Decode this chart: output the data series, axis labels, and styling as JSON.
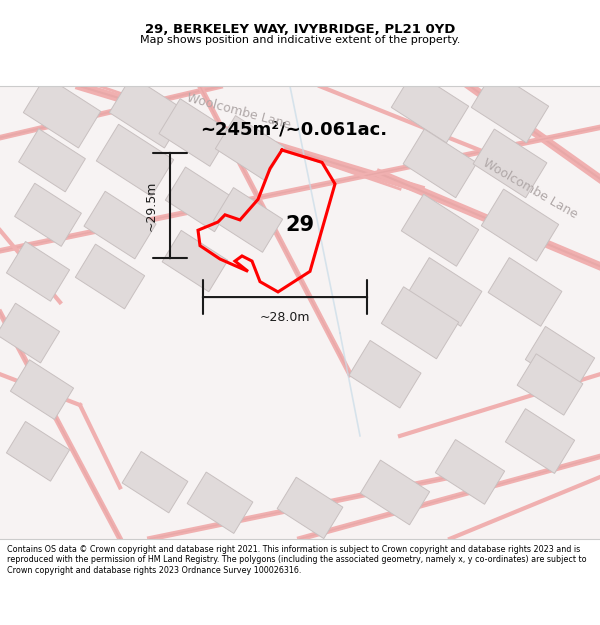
{
  "title_line1": "29, BERKELEY WAY, IVYBRIDGE, PL21 0YD",
  "title_line2": "Map shows position and indicative extent of the property.",
  "area_text": "~245m²/~0.061ac.",
  "property_number": "29",
  "dim_vertical": "~29.5m",
  "dim_horizontal": "~28.0m",
  "road_label_topleft": "Woolcombe Lane",
  "road_label_right": "Woolcombe Lane",
  "footer": "Contains OS data © Crown copyright and database right 2021. This information is subject to Crown copyright and database rights 2023 and is reproduced with the permission of HM Land Registry. The polygons (including the associated geometry, namely x, y co-ordinates) are subject to Crown copyright and database rights 2023 Ordnance Survey 100026316.",
  "map_bg": "#f7f3f3",
  "building_face": "#e0dada",
  "building_edge": "#c8c0c0",
  "road_line_color": "#f0b8b8",
  "road_outline_color": "#e8a8a8",
  "property_color": "#ff0000",
  "dim_color": "#1a1a1a",
  "title_color": "#000000",
  "footer_color": "#000000",
  "label_color": "#b0a8a8"
}
